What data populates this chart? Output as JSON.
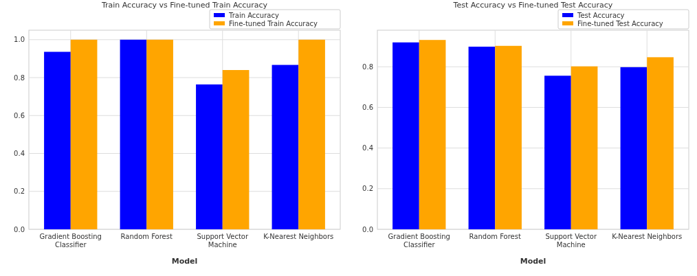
{
  "chart_data": [
    {
      "type": "bar",
      "title": "Train Accuracy vs Fine-tuned Train Accuracy",
      "xlabel": "Model",
      "categories": [
        "Gradient Boosting Classifier",
        "Random Forest",
        "Support Vector Machine",
        "K-Nearest Neighbors"
      ],
      "series": [
        {
          "name": "Train Accuracy",
          "color": "#0000ff",
          "values": [
            0.936,
            1.0,
            0.764,
            0.867
          ]
        },
        {
          "name": "Fine-tuned Train Accuracy",
          "color": "#ffa500",
          "values": [
            1.0,
            1.0,
            0.84,
            1.0
          ]
        }
      ],
      "ylim": [
        0,
        1.05
      ],
      "yticks": [
        {
          "value": 0,
          "label": "0.0"
        },
        {
          "value": 0.2,
          "label": "0.2"
        },
        {
          "value": 0.4,
          "label": "0.4"
        },
        {
          "value": 0.6,
          "label": "0.6"
        },
        {
          "value": 0.8,
          "label": "0.8"
        },
        {
          "value": 1,
          "label": "1.0"
        }
      ],
      "grid": true,
      "legend": "top right"
    },
    {
      "type": "bar",
      "title": "Test Accuracy vs Fine-tuned Test Accuracy",
      "xlabel": "Model",
      "categories": [
        "Gradient Boosting Classifier",
        "Random Forest",
        "Support Vector Machine",
        "K-Nearest Neighbors"
      ],
      "series": [
        {
          "name": "Test Accuracy",
          "color": "#0000ff",
          "values": [
            0.92,
            0.899,
            0.756,
            0.798
          ]
        },
        {
          "name": "Fine-tuned Test Accuracy",
          "color": "#ffa500",
          "values": [
            0.932,
            0.903,
            0.802,
            0.847
          ]
        }
      ],
      "ylim": [
        0,
        0.98
      ],
      "yticks": [
        {
          "value": 0,
          "label": "0.0"
        },
        {
          "value": 0.2,
          "label": "0.2"
        },
        {
          "value": 0.4,
          "label": "0.4"
        },
        {
          "value": 0.6,
          "label": "0.6"
        },
        {
          "value": 0.8,
          "label": "0.8"
        }
      ],
      "grid": true,
      "legend": "top right"
    }
  ]
}
